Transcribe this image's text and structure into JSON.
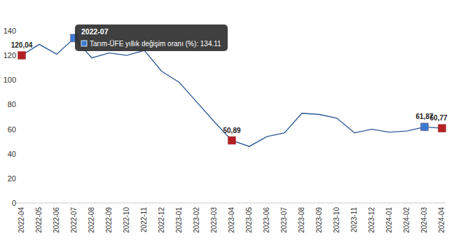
{
  "chart_data": {
    "type": "line",
    "categories": [
      "2022-04",
      "2022-05",
      "2022-06",
      "2022-07",
      "2022-08",
      "2022-09",
      "2022-10",
      "2022-11",
      "2022-12",
      "2023-01",
      "2023-02",
      "2023-03",
      "2023-04",
      "2023-05",
      "2023-06",
      "2023-07",
      "2023-08",
      "2023-09",
      "2023-10",
      "2023-11",
      "2023-12",
      "2024-01",
      "2024-02",
      "2024-03",
      "2024-04"
    ],
    "series": [
      {
        "name": "Tarım-ÜFE yıllık değişim oranı (%)",
        "color": "#2b5797",
        "marker": "square",
        "values": [
          120.04,
          129,
          121,
          134.11,
          118,
          122,
          120,
          124,
          107,
          98,
          82,
          66,
          50.89,
          46,
          54,
          57,
          73,
          72,
          69,
          57,
          60,
          57.5,
          58.5,
          61.87,
          60.77
        ],
        "value_labels": [
          "120,04",
          null,
          null,
          null,
          null,
          null,
          null,
          null,
          null,
          null,
          null,
          null,
          "50,89",
          null,
          null,
          null,
          null,
          null,
          null,
          null,
          null,
          null,
          null,
          "61,87",
          "60,77"
        ],
        "colors": [
          "#b52025",
          null,
          null,
          "#3a7bd5",
          null,
          null,
          null,
          null,
          null,
          null,
          null,
          null,
          "#b52025",
          null,
          null,
          null,
          null,
          null,
          null,
          null,
          null,
          null,
          null,
          "#3a7bd5",
          "#b52025"
        ]
      }
    ],
    "data_labels": true,
    "grid": false,
    "ylim": [
      0,
      140
    ],
    "yticks": [
      0,
      20,
      40,
      60,
      80,
      100,
      120,
      140
    ],
    "annotations": [
      {
        "x": "2022-07",
        "text": "Tarım-ÜFE yıllık değişim oranı (%): 134.11"
      }
    ]
  }
}
